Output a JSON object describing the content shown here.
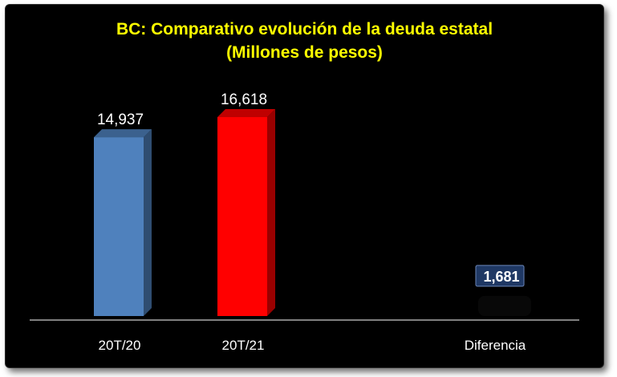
{
  "chart_data": {
    "type": "bar",
    "title": "BC: Comparativo evolución de la deuda estatal",
    "subtitle": "(Millones de pesos)",
    "categories": [
      "20T/20",
      "20T/21",
      "Diferencia"
    ],
    "values": [
      14937,
      16618,
      1681
    ],
    "data_labels": [
      "14,937",
      "16,618",
      "1,681"
    ],
    "colors": [
      "#4f81bd",
      "#ff0000",
      "#1f3864"
    ],
    "ylim": [
      0,
      16618
    ],
    "grid": false,
    "legend": "none"
  }
}
